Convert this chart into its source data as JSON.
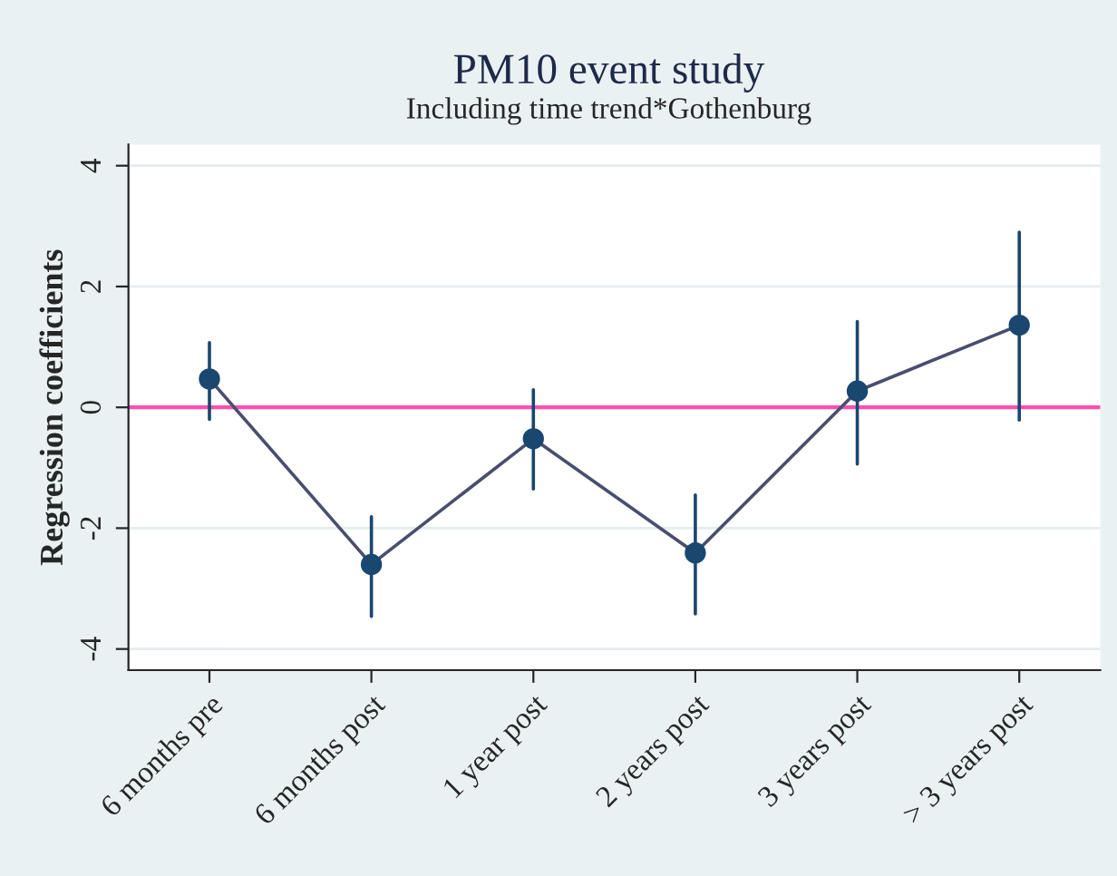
{
  "chart_data": {
    "type": "line",
    "title": "PM10 event study",
    "subtitle": "Including time trend*Gothenburg",
    "ylabel": "Regression coefficients",
    "categories": [
      "6 months pre",
      "6 months post",
      "1 year post",
      "2 years post",
      "3 years post",
      "> 3 years post"
    ],
    "series": [
      {
        "color": "#1a476f",
        "values": [
          0.47,
          -2.6,
          -0.52,
          -2.41,
          0.27,
          1.36
        ],
        "errors": [
          [
            -0.2,
            1.07
          ],
          [
            -3.46,
            -1.81
          ],
          [
            -1.35,
            0.29
          ],
          [
            -3.42,
            -1.45
          ],
          [
            -0.94,
            1.42
          ],
          [
            -0.21,
            2.9
          ]
        ]
      }
    ],
    "ylim": [
      -4.35,
      4.35
    ],
    "yticks": [
      -4,
      -2,
      0,
      2,
      4
    ],
    "grid": "y",
    "marker": "circle",
    "line_style": "solid",
    "ref_lines": [
      {
        "axis": "y",
        "value": 0,
        "color": "#ff4fb0"
      }
    ]
  }
}
